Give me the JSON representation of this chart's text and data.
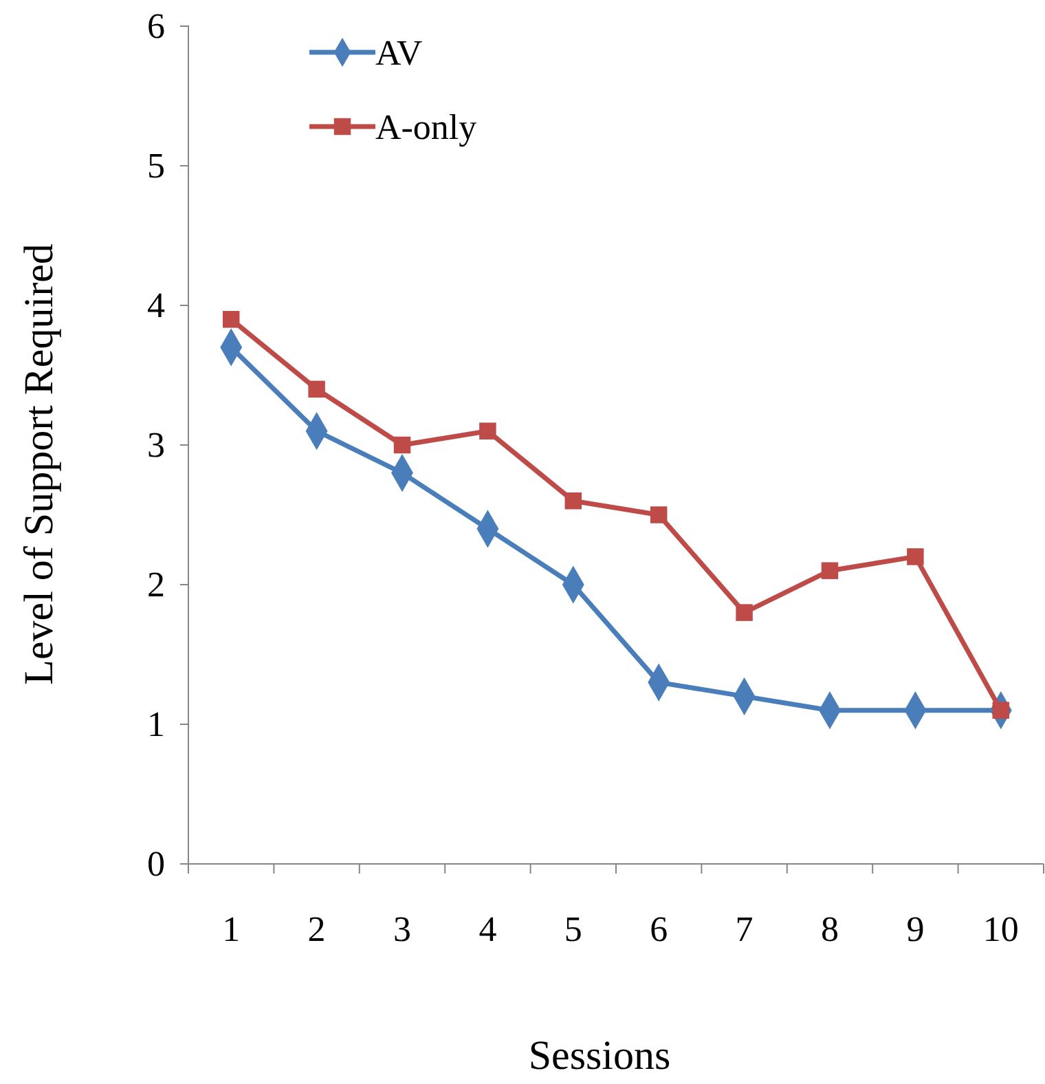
{
  "chart_data": {
    "type": "line",
    "xlabel": "Sessions",
    "ylabel": "Level of Support Required",
    "categories": [
      "1",
      "2",
      "3",
      "4",
      "5",
      "6",
      "7",
      "8",
      "9",
      "10"
    ],
    "series": [
      {
        "name": "AV",
        "color": "#4a7ebb",
        "marker": "diamond",
        "values": [
          3.7,
          3.1,
          2.8,
          2.4,
          2.0,
          1.3,
          1.2,
          1.1,
          1.1,
          1.1
        ]
      },
      {
        "name": "A-only",
        "color": "#be4b48",
        "marker": "square",
        "values": [
          3.9,
          3.4,
          3.0,
          3.1,
          2.6,
          2.5,
          1.8,
          2.1,
          2.2,
          1.1
        ]
      }
    ],
    "ylim": [
      0,
      6
    ],
    "yticks": [
      0,
      1,
      2,
      3,
      4,
      5,
      6
    ],
    "grid": false,
    "legend": "top left"
  }
}
